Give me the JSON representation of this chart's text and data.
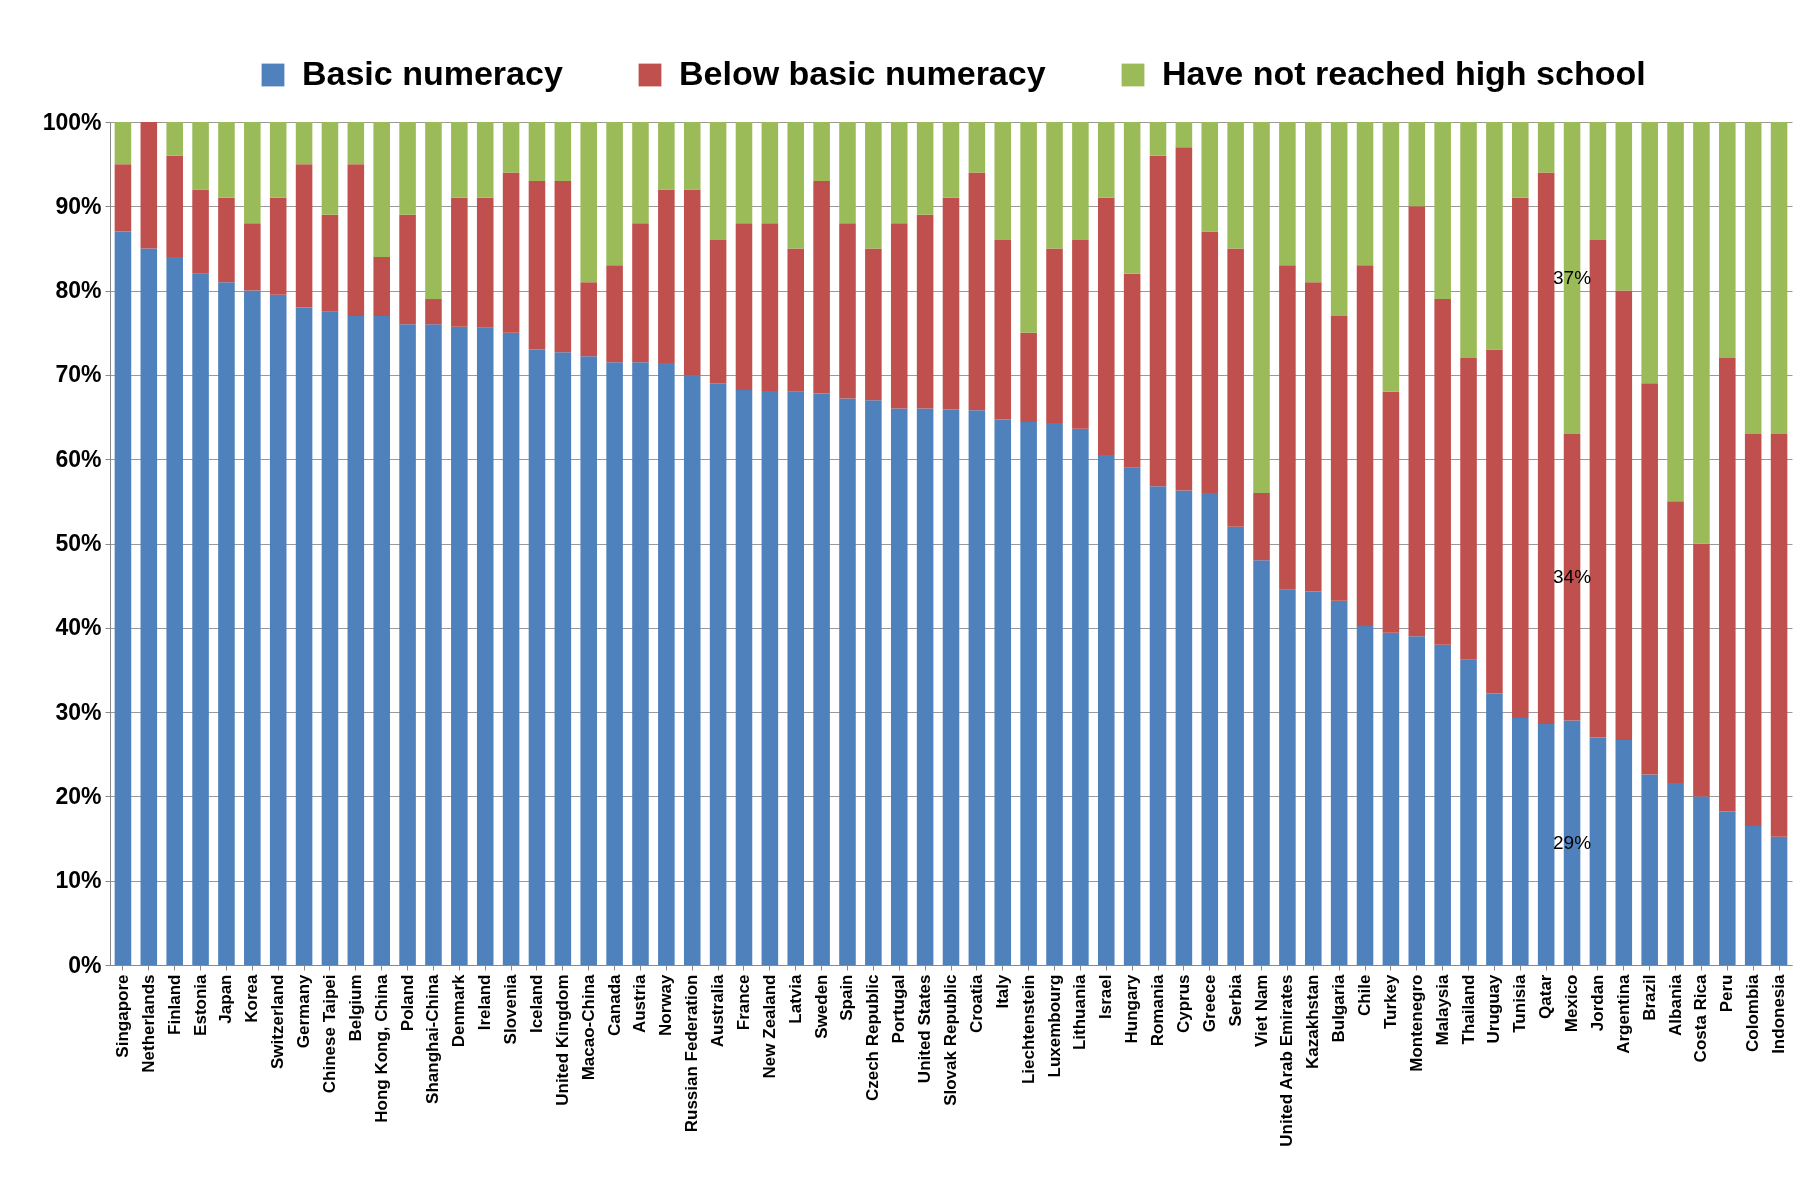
{
  "chart_data": {
    "type": "bar",
    "stacked": true,
    "legend": "top",
    "grid": "y",
    "categories": [
      "Singapore",
      "Netherlands",
      "Finland",
      "Estonia",
      "Japan",
      "Korea",
      "Switzerland",
      "Germany",
      "Chinese Taipei",
      "Belgium",
      "Hong Kong, China",
      "Poland",
      "Shanghai-China",
      "Denmark",
      "Ireland",
      "Slovenia",
      "Iceland",
      "United Kingdom",
      "Macao-China",
      "Canada",
      "Austria",
      "Norway",
      "Russian Federation",
      "Australia",
      "France",
      "New Zealand",
      "Latvia",
      "Sweden",
      "Spain",
      "Czech Republic",
      "Portugal",
      "United States",
      "Slovak Republic",
      "Croatia",
      "Italy",
      "Liechtenstein",
      "Luxembourg",
      "Lithuania",
      "Israel",
      "Hungary",
      "Romania",
      "Cyprus",
      "Greece",
      "Serbia",
      "Viet Nam",
      "United Arab Emirates",
      "Kazakhstan",
      "Bulgaria",
      "Chile",
      "Turkey",
      "Montenegro",
      "Malaysia",
      "Thailand",
      "Uruguay",
      "Tunisia",
      "Qatar",
      "Mexico",
      "Jordan",
      "Argentina",
      "Brazil",
      "Albania",
      "Costa Rica",
      "Peru",
      "Colombia",
      "Indonesia"
    ],
    "ylim": [
      0,
      100
    ],
    "yticks": [
      {
        "value": 0,
        "label": "0%"
      },
      {
        "value": 10,
        "label": "10%"
      },
      {
        "value": 20,
        "label": "20%"
      },
      {
        "value": 30,
        "label": "30%"
      },
      {
        "value": 40,
        "label": "40%"
      },
      {
        "value": 50,
        "label": "50%"
      },
      {
        "value": 60,
        "label": "60%"
      },
      {
        "value": 70,
        "label": "70%"
      },
      {
        "value": 80,
        "label": "80%"
      },
      {
        "value": 90,
        "label": "90%"
      },
      {
        "value": 100,
        "label": "100%"
      }
    ],
    "series": [
      {
        "name": "Basic numeracy",
        "color": "#4f81bd",
        "values": [
          87,
          85,
          84,
          82,
          81,
          80,
          79.5,
          78,
          77.5,
          77,
          77,
          76,
          76,
          75.7,
          75.6,
          75,
          73,
          72.7,
          72.2,
          71.5,
          71.5,
          71.4,
          70,
          69,
          68.2,
          68.1,
          68,
          67.8,
          67.2,
          67,
          66,
          66,
          65.9,
          65.8,
          64.7,
          64.4,
          64.3,
          63.6,
          60.5,
          59,
          56.8,
          56.3,
          56,
          52,
          48,
          44.5,
          44.3,
          43.2,
          40.2,
          39.4,
          39,
          38,
          36.2,
          32.2,
          29.3,
          28.6,
          29,
          27,
          26.7,
          22.6,
          21.6,
          20,
          18.2,
          16.5,
          15.2
        ],
        "value_labels": [
          null,
          null,
          null,
          null,
          null,
          null,
          null,
          null,
          null,
          null,
          null,
          null,
          null,
          null,
          null,
          null,
          null,
          null,
          null,
          null,
          null,
          null,
          null,
          null,
          null,
          null,
          null,
          null,
          null,
          null,
          null,
          null,
          null,
          null,
          null,
          null,
          null,
          null,
          null,
          null,
          null,
          null,
          null,
          null,
          null,
          null,
          null,
          null,
          null,
          null,
          null,
          null,
          null,
          null,
          null,
          null,
          "29%",
          null,
          null,
          null,
          null,
          null,
          null,
          null,
          null
        ]
      },
      {
        "name": "Below basic numeracy",
        "color": "#c0504d",
        "values": [
          8,
          15,
          12,
          10,
          10,
          8,
          11.5,
          17,
          11.5,
          18,
          7,
          13,
          3,
          15.3,
          15.4,
          19,
          20,
          20.3,
          8.8,
          11.5,
          16.5,
          20.6,
          22,
          17,
          19.8,
          19.9,
          17,
          25.2,
          20.8,
          18,
          22,
          23,
          25.1,
          28.2,
          21.3,
          10.6,
          20.7,
          22.4,
          30.5,
          23,
          39.2,
          40.7,
          31,
          33,
          8,
          38.5,
          36.7,
          33.8,
          42.8,
          28.6,
          51,
          41,
          35.8,
          40.8,
          61.7,
          65.4,
          34,
          59,
          53.3,
          46.4,
          33.4,
          30,
          53.8,
          46.5,
          47.8
        ],
        "value_labels": [
          null,
          null,
          null,
          null,
          null,
          null,
          null,
          null,
          null,
          null,
          null,
          null,
          null,
          null,
          null,
          null,
          null,
          null,
          null,
          null,
          null,
          null,
          null,
          null,
          null,
          null,
          null,
          null,
          null,
          null,
          null,
          null,
          null,
          null,
          null,
          null,
          null,
          null,
          null,
          null,
          null,
          null,
          null,
          null,
          null,
          null,
          null,
          null,
          null,
          null,
          null,
          null,
          null,
          null,
          null,
          null,
          "34%",
          null,
          null,
          null,
          null,
          null,
          null,
          null,
          null
        ]
      },
      {
        "name": "Have not reached high school",
        "color": "#9bbb59",
        "values": [
          5,
          0,
          4,
          8,
          9,
          12,
          9,
          5,
          11,
          5,
          16,
          11,
          21,
          9,
          9,
          6,
          7,
          7,
          19,
          17,
          12,
          8,
          8,
          14,
          12,
          12,
          15,
          7,
          12,
          15,
          12,
          11,
          9,
          6,
          14,
          25,
          15,
          14,
          9,
          18,
          4,
          3,
          13,
          15,
          44,
          17,
          19,
          23,
          17,
          32,
          10,
          21,
          28,
          27,
          9,
          6,
          37,
          14,
          20,
          31,
          45,
          50,
          28,
          37,
          37
        ],
        "value_labels": [
          null,
          null,
          null,
          null,
          null,
          null,
          null,
          null,
          null,
          null,
          null,
          null,
          null,
          null,
          null,
          null,
          null,
          null,
          null,
          null,
          null,
          null,
          null,
          null,
          null,
          null,
          null,
          null,
          null,
          null,
          null,
          null,
          null,
          null,
          null,
          null,
          null,
          null,
          null,
          null,
          null,
          null,
          null,
          null,
          null,
          null,
          null,
          null,
          null,
          null,
          null,
          null,
          null,
          null,
          null,
          null,
          "37%",
          null,
          null,
          null,
          null,
          null,
          null,
          null,
          null
        ]
      }
    ]
  }
}
